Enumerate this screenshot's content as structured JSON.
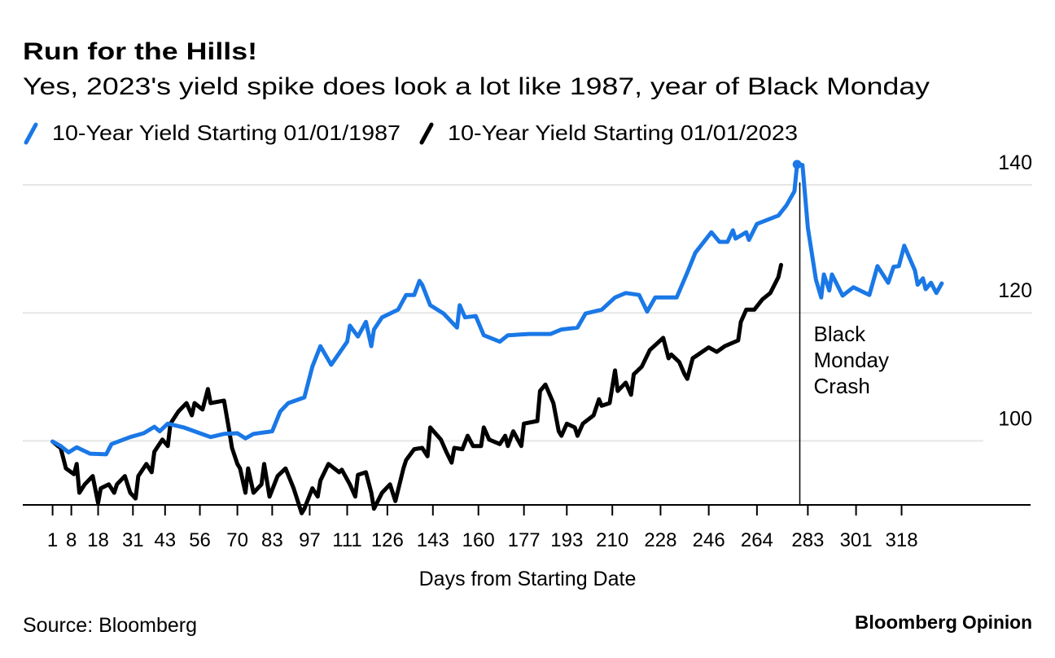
{
  "title": "Run for the Hills!",
  "subtitle": "Yes, 2023's yield spike does look a lot like 1987, year of Black Monday",
  "source": "Source: Bloomberg",
  "logo": {
    "brand": "Bloomberg",
    "section": "Opinion",
    "brand_color": "#000000",
    "section_color": "#1a6fd8"
  },
  "chart_data": {
    "type": "line",
    "title": "Run for the Hills!",
    "subtitle": "Yes, 2023's yield spike does look a lot like 1987, year of Black Monday",
    "xlabel": "Days from Starting Date",
    "ylabel": "",
    "xlim": [
      1,
      333
    ],
    "ylim": [
      90,
      145
    ],
    "y_axis_side": "right",
    "grid": true,
    "legend_position": "top-left",
    "x_ticks": [
      1,
      8,
      18,
      31,
      43,
      56,
      70,
      83,
      97,
      111,
      126,
      143,
      160,
      177,
      193,
      210,
      228,
      246,
      264,
      283,
      301,
      318
    ],
    "y_ticks": [
      100,
      120,
      140
    ],
    "annotation": {
      "text_lines": [
        "Black",
        "Monday",
        "Crash"
      ],
      "x": 280
    },
    "series": [
      {
        "name": "10-Year Yield Starting 01/01/1987",
        "color": "#1a78e6",
        "points": [
          [
            1,
            99.9
          ],
          [
            4,
            99.2
          ],
          [
            7,
            98.2
          ],
          [
            10,
            99.0
          ],
          [
            15,
            98.0
          ],
          [
            21,
            97.9
          ],
          [
            23,
            99.5
          ],
          [
            30,
            100.6
          ],
          [
            35,
            101.2
          ],
          [
            39,
            102.2
          ],
          [
            41,
            101.5
          ],
          [
            44,
            102.7
          ],
          [
            50,
            102.1
          ],
          [
            56,
            101.2
          ],
          [
            60,
            100.6
          ],
          [
            65,
            101.1
          ],
          [
            70,
            101.2
          ],
          [
            73,
            100.4
          ],
          [
            76,
            101.1
          ],
          [
            83,
            101.5
          ],
          [
            86,
            104.6
          ],
          [
            89,
            105.9
          ],
          [
            95,
            106.8
          ],
          [
            98,
            111.6
          ],
          [
            101,
            114.8
          ],
          [
            105,
            111.9
          ],
          [
            111,
            115.5
          ],
          [
            112,
            118.0
          ],
          [
            115,
            116.3
          ],
          [
            118,
            118.6
          ],
          [
            120,
            114.8
          ],
          [
            121,
            117.4
          ],
          [
            124,
            119.3
          ],
          [
            130,
            120.5
          ],
          [
            133,
            122.8
          ],
          [
            136,
            122.8
          ],
          [
            138,
            125.0
          ],
          [
            139,
            124.4
          ],
          [
            142,
            121.2
          ],
          [
            147,
            119.9
          ],
          [
            152,
            117.7
          ],
          [
            153,
            121.2
          ],
          [
            155,
            119.3
          ],
          [
            159,
            119.5
          ],
          [
            162,
            116.5
          ],
          [
            168,
            115.5
          ],
          [
            171,
            116.5
          ],
          [
            179,
            116.7
          ],
          [
            187,
            116.7
          ],
          [
            191,
            117.4
          ],
          [
            197,
            117.7
          ],
          [
            200,
            119.9
          ],
          [
            206,
            120.5
          ],
          [
            211,
            122.4
          ],
          [
            215,
            123.1
          ],
          [
            220,
            122.8
          ],
          [
            223,
            120.2
          ],
          [
            226,
            122.4
          ],
          [
            234,
            122.4
          ],
          [
            238,
            126.3
          ],
          [
            241,
            129.4
          ],
          [
            247,
            132.6
          ],
          [
            250,
            131.1
          ],
          [
            253,
            131.1
          ],
          [
            255,
            132.9
          ],
          [
            256,
            131.6
          ],
          [
            260,
            132.6
          ],
          [
            261,
            131.4
          ],
          [
            264,
            133.9
          ],
          [
            272,
            135.2
          ],
          [
            275,
            136.8
          ],
          [
            278,
            139.0
          ],
          [
            279,
            143.2
          ],
          [
            281,
            143.1
          ],
          [
            283,
            133.3
          ],
          [
            286,
            125.2
          ],
          [
            288,
            122.4
          ],
          [
            289,
            126.0
          ],
          [
            291,
            123.5
          ],
          [
            292,
            126.0
          ],
          [
            296,
            122.7
          ],
          [
            300,
            124.0
          ],
          [
            306,
            122.8
          ],
          [
            309,
            127.3
          ],
          [
            311,
            126.0
          ],
          [
            313,
            124.7
          ],
          [
            315,
            127.2
          ],
          [
            317,
            127.3
          ],
          [
            319,
            130.5
          ],
          [
            323,
            126.6
          ],
          [
            324,
            124.4
          ],
          [
            326,
            125.4
          ],
          [
            327,
            123.7
          ],
          [
            329,
            124.7
          ],
          [
            331,
            123.1
          ],
          [
            333,
            124.6
          ]
        ]
      },
      {
        "name": "10-Year Yield Starting 01/01/2023",
        "color": "#000000",
        "points": [
          [
            1,
            99.9
          ],
          [
            3,
            99.2
          ],
          [
            4,
            98.9
          ],
          [
            6,
            95.7
          ],
          [
            9,
            94.8
          ],
          [
            10,
            96.4
          ],
          [
            11,
            91.9
          ],
          [
            13,
            93.2
          ],
          [
            16,
            94.5
          ],
          [
            18,
            90.3
          ],
          [
            19,
            92.6
          ],
          [
            22,
            93.2
          ],
          [
            24,
            91.9
          ],
          [
            25,
            93.2
          ],
          [
            28,
            94.5
          ],
          [
            30,
            91.9
          ],
          [
            32,
            91.0
          ],
          [
            33,
            94.5
          ],
          [
            36,
            96.4
          ],
          [
            38,
            95.1
          ],
          [
            39,
            98.3
          ],
          [
            42,
            100.2
          ],
          [
            44,
            99.2
          ],
          [
            45,
            102.7
          ],
          [
            48,
            104.6
          ],
          [
            51,
            105.9
          ],
          [
            53,
            104.0
          ],
          [
            54,
            105.9
          ],
          [
            57,
            104.9
          ],
          [
            59,
            108.1
          ],
          [
            60,
            105.9
          ],
          [
            65,
            106.3
          ],
          [
            67,
            101.5
          ],
          [
            68,
            98.9
          ],
          [
            70,
            96.4
          ],
          [
            71,
            95.7
          ],
          [
            73,
            91.9
          ],
          [
            74,
            95.7
          ],
          [
            76,
            91.9
          ],
          [
            79,
            93.2
          ],
          [
            80,
            96.4
          ],
          [
            82,
            91.3
          ],
          [
            85,
            94.5
          ],
          [
            88,
            95.7
          ],
          [
            91,
            92.6
          ],
          [
            94,
            88.7
          ],
          [
            95,
            89.4
          ],
          [
            98,
            92.6
          ],
          [
            100,
            91.3
          ],
          [
            101,
            93.8
          ],
          [
            104,
            96.4
          ],
          [
            108,
            95.1
          ],
          [
            109,
            95.5
          ],
          [
            112,
            93.2
          ],
          [
            114,
            91.3
          ],
          [
            115,
            94.7
          ],
          [
            118,
            95.1
          ],
          [
            120,
            91.9
          ],
          [
            121,
            89.4
          ],
          [
            124,
            91.9
          ],
          [
            127,
            93.2
          ],
          [
            129,
            90.6
          ],
          [
            132,
            95.7
          ],
          [
            133,
            97.0
          ],
          [
            136,
            98.7
          ],
          [
            139,
            98.9
          ],
          [
            141,
            97.6
          ],
          [
            142,
            102.1
          ],
          [
            146,
            100.2
          ],
          [
            148,
            98.3
          ],
          [
            150,
            96.6
          ],
          [
            151,
            98.9
          ],
          [
            154,
            98.7
          ],
          [
            156,
            100.8
          ],
          [
            158,
            99.2
          ],
          [
            161,
            99.2
          ],
          [
            162,
            102.1
          ],
          [
            164,
            100.2
          ],
          [
            168,
            99.5
          ],
          [
            170,
            100.8
          ],
          [
            171,
            99.2
          ],
          [
            173,
            101.5
          ],
          [
            176,
            99.2
          ],
          [
            177,
            102.7
          ],
          [
            182,
            103.1
          ],
          [
            183,
            107.8
          ],
          [
            185,
            108.8
          ],
          [
            188,
            105.9
          ],
          [
            190,
            101.5
          ],
          [
            191,
            100.8
          ],
          [
            193,
            102.7
          ],
          [
            196,
            102.1
          ],
          [
            197,
            100.8
          ],
          [
            199,
            102.7
          ],
          [
            203,
            104.0
          ],
          [
            205,
            106.5
          ],
          [
            206,
            105.5
          ],
          [
            209,
            105.9
          ],
          [
            211,
            111.0
          ],
          [
            212,
            107.8
          ],
          [
            215,
            109.1
          ],
          [
            217,
            107.2
          ],
          [
            218,
            110.4
          ],
          [
            221,
            111.6
          ],
          [
            224,
            114.2
          ],
          [
            229,
            116.1
          ],
          [
            231,
            112.9
          ],
          [
            232,
            113.5
          ],
          [
            235,
            112.3
          ],
          [
            237,
            110.4
          ],
          [
            238,
            109.7
          ],
          [
            240,
            112.9
          ],
          [
            246,
            114.6
          ],
          [
            249,
            113.9
          ],
          [
            252,
            114.8
          ],
          [
            257,
            115.7
          ],
          [
            258,
            118.6
          ],
          [
            260,
            120.5
          ],
          [
            263,
            120.5
          ],
          [
            266,
            122.1
          ],
          [
            269,
            123.1
          ],
          [
            272,
            125.6
          ],
          [
            273,
            127.5
          ]
        ]
      }
    ]
  }
}
